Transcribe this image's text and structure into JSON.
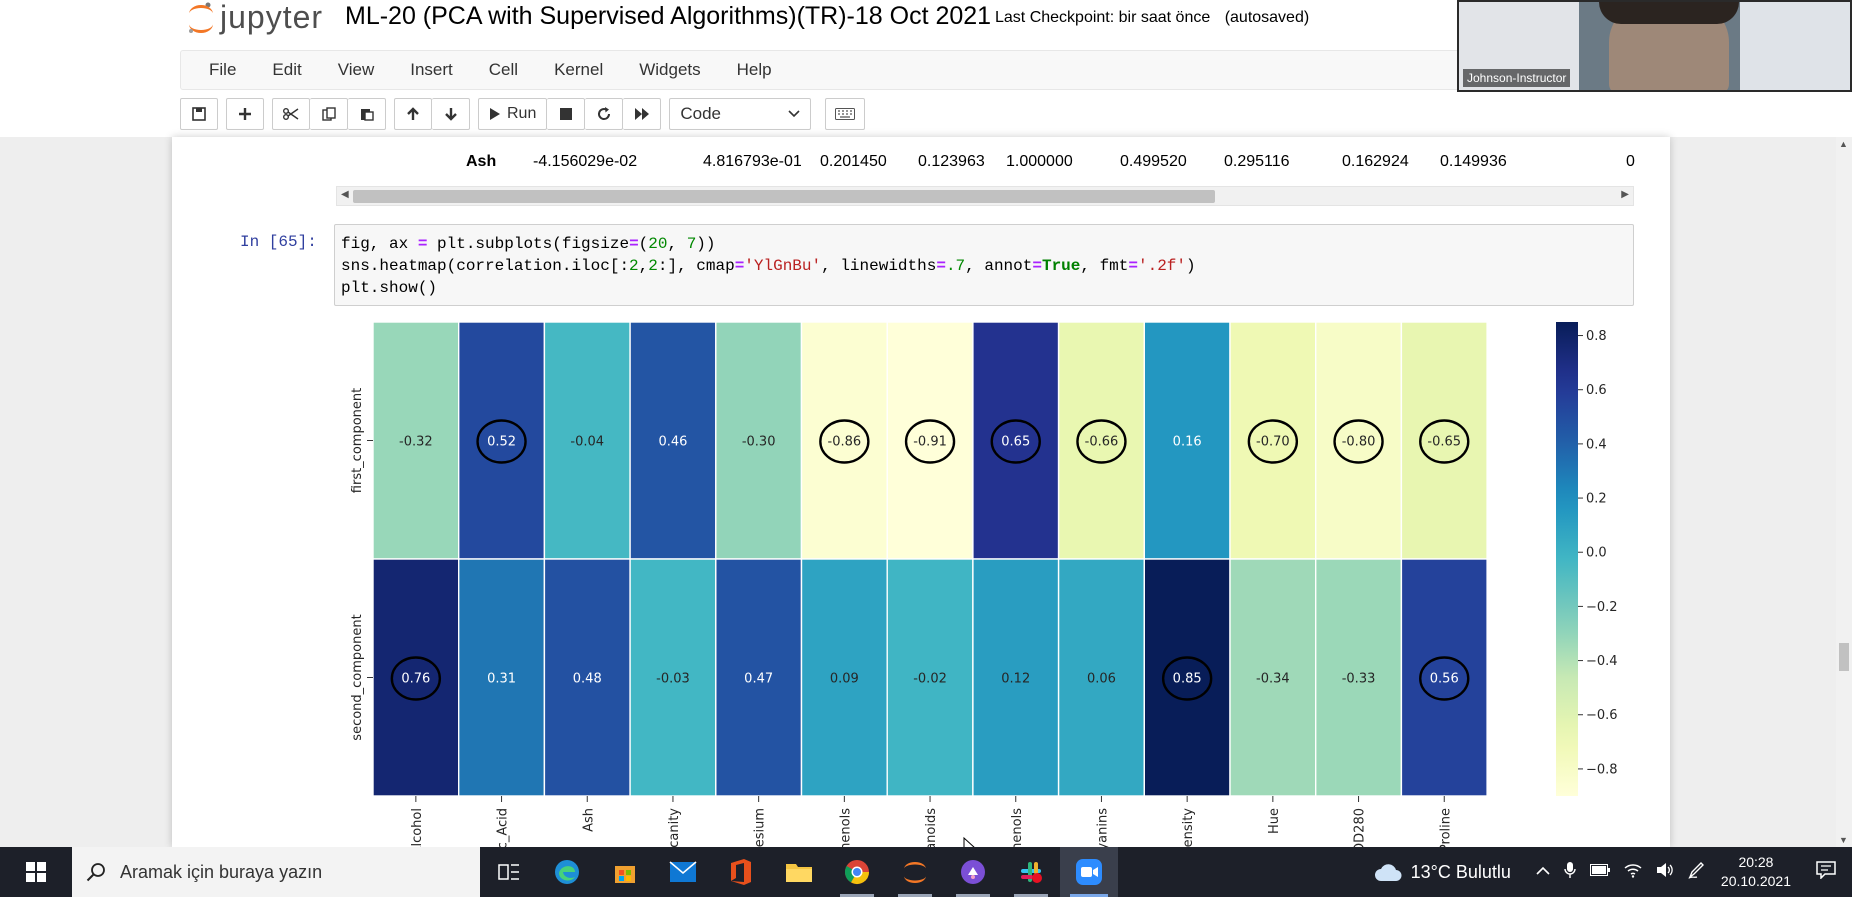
{
  "header": {
    "logo_text": "jupyter",
    "notebook_title": "ML-20 (PCA with Supervised Algorithms)(TR)-18 Oct 2021",
    "checkpoint": "Last Checkpoint: bir saat önce",
    "autosave": "(autosaved)"
  },
  "menu": [
    "File",
    "Edit",
    "View",
    "Insert",
    "Cell",
    "Kernel",
    "Widgets",
    "Help"
  ],
  "toolbar": {
    "run_label": "Run",
    "cell_type": "Code"
  },
  "video": {
    "participant_label": "Johnson-Instructor"
  },
  "output_table": {
    "row_label": "Ash",
    "values": [
      "-4.156029e-02",
      "4.816793e-01",
      "0.201450",
      "0.123963",
      "1.000000",
      "0.499520",
      "0.295116",
      "0.162924",
      "0.149936",
      "0"
    ]
  },
  "code_cell": {
    "prompt": "In [65]:",
    "line1_a": "fig, ax ",
    "line1_eq": "=",
    "line1_b": " plt.subplots(figsize",
    "line1_eq2": "=",
    "line1_c": "(",
    "line1_n1": "20",
    "line1_d": ", ",
    "line1_n2": "7",
    "line1_e": "))",
    "line2_a": "sns.heatmap(correlation.iloc[:",
    "line2_n1": "2",
    "line2_b": ",",
    "line2_n2": "2",
    "line2_c": ":], cmap",
    "line2_eq": "=",
    "line2_s1": "'YlGnBu'",
    "line2_d": ", linewidths",
    "line2_eq2": "=",
    "line2_n3": ".7",
    "line2_e": ", annot",
    "line2_eq3": "=",
    "line2_kw": "True",
    "line2_f": ", fmt",
    "line2_eq4": "=",
    "line2_s2": "'.2f'",
    "line2_g": ")",
    "line3": "plt.show()"
  },
  "chart_data": {
    "type": "heatmap",
    "rows": [
      "first_component",
      "second_component"
    ],
    "columns": [
      "Alcohol",
      "Malic_Acid",
      "Ash",
      "Ash_Alcanity",
      "Magnesium",
      "Total_Phenols",
      "Flavanoids",
      "Nonflavanoid_Phenols",
      "Proanthocyanins",
      "Color_Intensity",
      "Hue",
      "OD280",
      "Proline"
    ],
    "column_labels_visible": [
      "Alcohol",
      "c_Acid",
      "Ash",
      "canity",
      "esium",
      "henols",
      "anoids",
      "nenols",
      "yanins",
      "ensity",
      "Hue",
      "OD280",
      "Proline"
    ],
    "values": [
      [
        -0.32,
        0.52,
        -0.04,
        0.46,
        -0.3,
        -0.86,
        -0.91,
        0.65,
        -0.66,
        0.16,
        -0.7,
        -0.8,
        -0.65
      ],
      [
        0.76,
        0.31,
        0.48,
        -0.03,
        0.47,
        0.09,
        -0.02,
        0.12,
        0.06,
        0.85,
        -0.34,
        -0.33,
        0.56
      ]
    ],
    "annotations_fmt": ".2f",
    "cmap": "YlGnBu",
    "vmin": -0.9,
    "vmax": 0.85,
    "colorbar_ticks": [
      0.8,
      0.6,
      0.4,
      0.2,
      0.0,
      -0.2,
      -0.4,
      -0.6,
      -0.8
    ],
    "colorbar_tick_labels": [
      "0.8",
      "0.6",
      "0.4",
      "0.2",
      "0.0",
      "−0.2",
      "−0.4",
      "−0.6",
      "−0.8"
    ],
    "circled_cells": [
      [
        0,
        1
      ],
      [
        0,
        5
      ],
      [
        0,
        6
      ],
      [
        0,
        7
      ],
      [
        0,
        8
      ],
      [
        0,
        10
      ],
      [
        0,
        11
      ],
      [
        0,
        12
      ],
      [
        1,
        0
      ],
      [
        1,
        9
      ],
      [
        1,
        12
      ]
    ]
  },
  "taskbar": {
    "search_placeholder": "Aramak için buraya yazın",
    "weather": "13°C  Bulutlu",
    "time": "20:28",
    "date": "20.10.2021",
    "apps": [
      "task-view",
      "edge",
      "store",
      "mail",
      "office",
      "file-explorer",
      "chrome",
      "jupyter",
      "app-purple",
      "slack",
      "zoom"
    ]
  }
}
